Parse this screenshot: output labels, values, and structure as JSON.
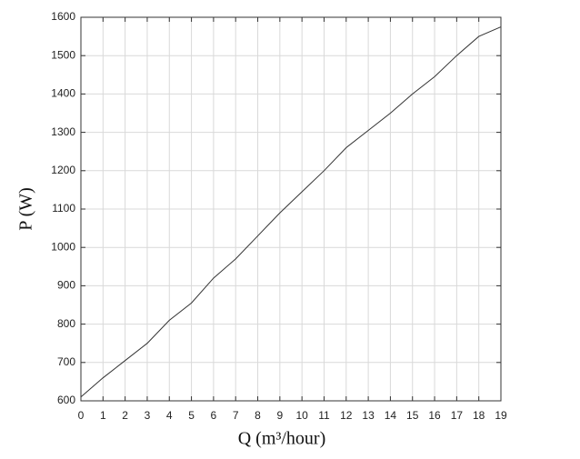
{
  "chart_data": {
    "type": "line",
    "xlabel": "Q (m³/hour)",
    "ylabel": "P (W)",
    "x": [
      0,
      1,
      2,
      3,
      4,
      5,
      6,
      7,
      8,
      9,
      10,
      11,
      12,
      13,
      14,
      15,
      16,
      17,
      18,
      19
    ],
    "series": [
      {
        "color": "#333333",
        "values": [
          610,
          660,
          705,
          750,
          810,
          855,
          920,
          970,
          1030,
          1090,
          1145,
          1200,
          1260,
          1305,
          1350,
          1400,
          1445,
          1500,
          1550,
          1575
        ]
      }
    ],
    "xlim": [
      0,
      19
    ],
    "xticks": [
      0,
      1,
      2,
      3,
      4,
      5,
      6,
      7,
      8,
      9,
      10,
      11,
      12,
      13,
      14,
      15,
      16,
      17,
      18,
      19
    ],
    "ylim": [
      600,
      1600
    ],
    "yticks": [
      600,
      700,
      800,
      900,
      1000,
      1100,
      1200,
      1300,
      1400,
      1500,
      1600
    ],
    "grid": true
  }
}
